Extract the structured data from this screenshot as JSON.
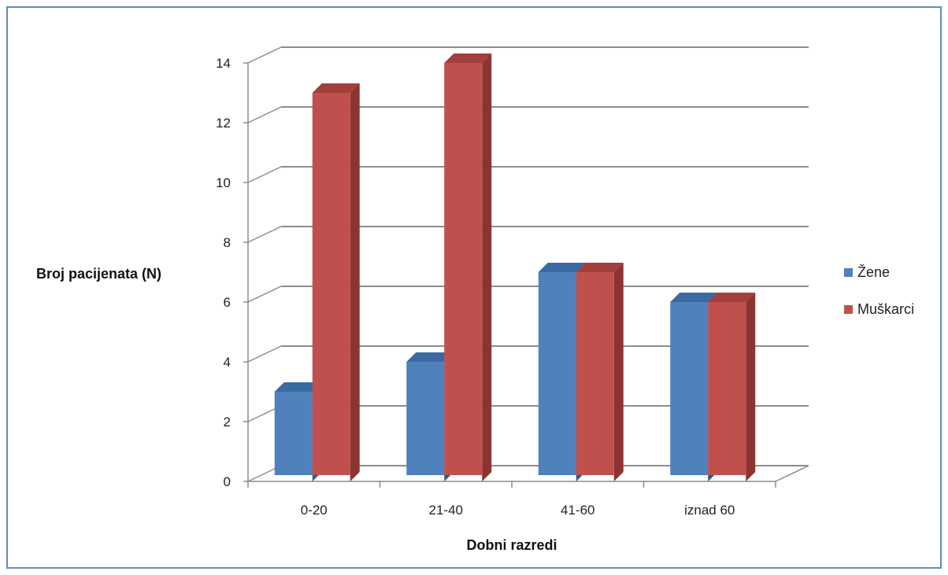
{
  "chart_data": {
    "type": "bar",
    "categories": [
      "0-20",
      "21-40",
      "41-60",
      "iznad 60"
    ],
    "series": [
      {
        "name": "Žene",
        "values": [
          3,
          4,
          7,
          6
        ],
        "color": "#4f81bd",
        "top_color": "#3b6aa3",
        "side_color": "#2f5b8e"
      },
      {
        "name": "Muškarci",
        "values": [
          13,
          14,
          7,
          6
        ],
        "color": "#c0504d",
        "top_color": "#a33f3c",
        "side_color": "#8c3431"
      }
    ],
    "ylim": [
      0,
      14
    ],
    "yticks": [
      "0",
      "2",
      "4",
      "6",
      "8",
      "10",
      "12",
      "14"
    ],
    "xlabel": "Dobni razredi",
    "ylabel": "Broj pacijenata (N)",
    "grid": true,
    "legend_position": "right",
    "three_d": true
  }
}
